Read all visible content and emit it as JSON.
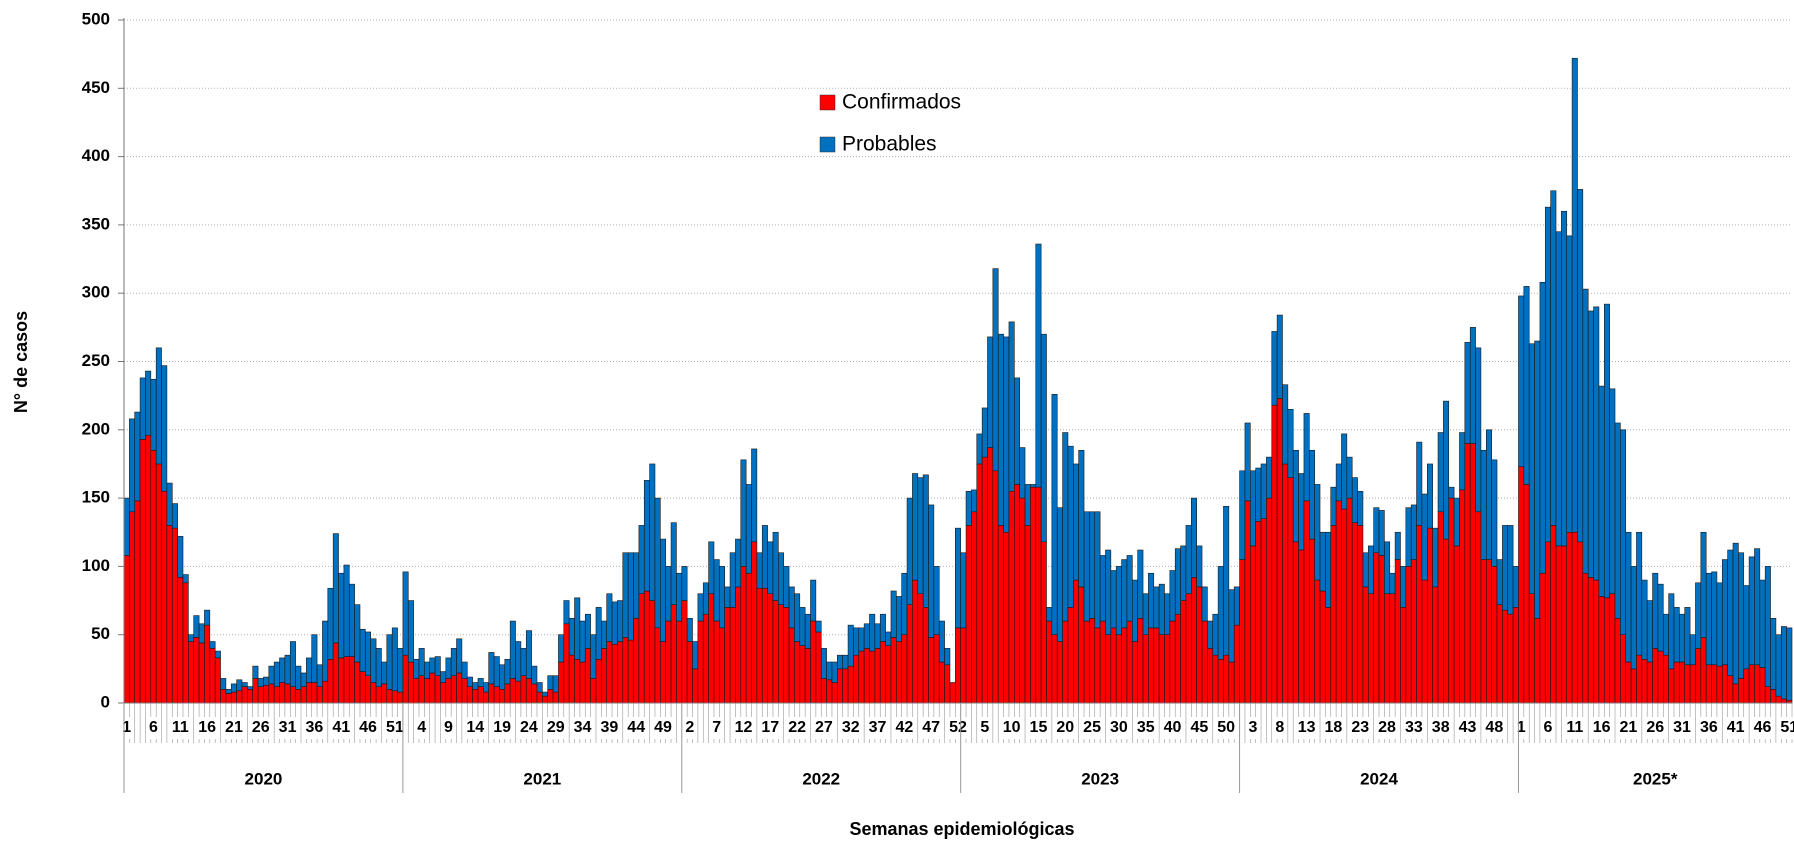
{
  "chart_data": {
    "type": "stacked-bar",
    "x_title": "Semanas epidemiológicas",
    "y_title": "N° de casos",
    "ylim": [
      0,
      500
    ],
    "yticks": [
      0,
      50,
      100,
      150,
      200,
      250,
      300,
      350,
      400,
      450,
      500
    ],
    "grid": true,
    "legend": "top",
    "x_groups": [
      {
        "label": "2020",
        "size": 52
      },
      {
        "label": "2021",
        "size": 52
      },
      {
        "label": "2022",
        "size": 52
      },
      {
        "label": "2023",
        "size": 52
      },
      {
        "label": "2024",
        "size": 52
      },
      {
        "label": "2025*",
        "size": 51
      }
    ],
    "categories": [
      1,
      null,
      null,
      null,
      null,
      6,
      null,
      null,
      null,
      null,
      11,
      null,
      null,
      null,
      null,
      16,
      null,
      null,
      null,
      null,
      21,
      null,
      null,
      null,
      null,
      26,
      null,
      null,
      null,
      null,
      31,
      null,
      null,
      null,
      null,
      36,
      null,
      null,
      null,
      null,
      41,
      null,
      null,
      null,
      null,
      46,
      null,
      null,
      null,
      null,
      51,
      null,
      null,
      null,
      null,
      4,
      null,
      null,
      null,
      null,
      9,
      null,
      null,
      null,
      null,
      14,
      null,
      null,
      null,
      null,
      19,
      null,
      null,
      null,
      null,
      24,
      null,
      null,
      null,
      null,
      29,
      null,
      null,
      null,
      null,
      34,
      null,
      null,
      null,
      null,
      39,
      null,
      null,
      null,
      null,
      44,
      null,
      null,
      null,
      null,
      49,
      null,
      null,
      null,
      null,
      2,
      null,
      null,
      null,
      null,
      7,
      null,
      null,
      null,
      null,
      12,
      null,
      null,
      null,
      null,
      17,
      null,
      null,
      null,
      null,
      22,
      null,
      null,
      null,
      null,
      27,
      null,
      null,
      null,
      null,
      32,
      null,
      null,
      null,
      null,
      37,
      null,
      null,
      null,
      null,
      42,
      null,
      null,
      null,
      null,
      47,
      null,
      null,
      null,
      null,
      52,
      null,
      null,
      null,
      null,
      5,
      null,
      null,
      null,
      null,
      10,
      null,
      null,
      null,
      null,
      15,
      null,
      null,
      null,
      null,
      20,
      null,
      null,
      null,
      null,
      25,
      null,
      null,
      null,
      null,
      30,
      null,
      null,
      null,
      null,
      35,
      null,
      null,
      null,
      null,
      40,
      null,
      null,
      null,
      null,
      45,
      null,
      null,
      null,
      null,
      50,
      null,
      null,
      null,
      null,
      3,
      null,
      null,
      null,
      null,
      8,
      null,
      null,
      null,
      null,
      13,
      null,
      null,
      null,
      null,
      18,
      null,
      null,
      null,
      null,
      23,
      null,
      null,
      null,
      null,
      28,
      null,
      null,
      null,
      null,
      33,
      null,
      null,
      null,
      null,
      38,
      null,
      null,
      null,
      null,
      43,
      null,
      null,
      null,
      null,
      48,
      null,
      null,
      null,
      null,
      1,
      null,
      null,
      null,
      null,
      6,
      null,
      null,
      null,
      null,
      11,
      null,
      null,
      null,
      null,
      16,
      null,
      null,
      null,
      null,
      21,
      null,
      null,
      null,
      null,
      26,
      null,
      null,
      null,
      null,
      31,
      null,
      null,
      null,
      null,
      36,
      null,
      null,
      null,
      null,
      41,
      null,
      null,
      null,
      null,
      46,
      null,
      null,
      null,
      null,
      51
    ],
    "series": [
      {
        "name": "Confirmados",
        "color": "#ff0000",
        "values": [
          108,
          140,
          148,
          193,
          196,
          185,
          175,
          155,
          130,
          128,
          92,
          88,
          45,
          48,
          44,
          57,
          40,
          33,
          10,
          7,
          8,
          9,
          12,
          10,
          18,
          12,
          13,
          14,
          12,
          15,
          14,
          12,
          10,
          12,
          15,
          15,
          12,
          16,
          32,
          44,
          33,
          34,
          34,
          30,
          23,
          20,
          15,
          12,
          14,
          10,
          9,
          8,
          35,
          30,
          18,
          20,
          18,
          22,
          20,
          15,
          18,
          20,
          22,
          18,
          12,
          10,
          12,
          8,
          14,
          12,
          10,
          14,
          18,
          16,
          20,
          18,
          14,
          8,
          5,
          10,
          8,
          30,
          58,
          35,
          32,
          30,
          40,
          18,
          32,
          40,
          45,
          43,
          45,
          48,
          46,
          62,
          80,
          82,
          75,
          55,
          45,
          60,
          72,
          60,
          75,
          45,
          25,
          60,
          65,
          80,
          60,
          55,
          70,
          70,
          85,
          100,
          95,
          118,
          84,
          84,
          80,
          75,
          72,
          70,
          55,
          45,
          42,
          40,
          60,
          52,
          18,
          17,
          15,
          25,
          25,
          27,
          35,
          38,
          40,
          38,
          40,
          45,
          42,
          48,
          45,
          50,
          72,
          90,
          80,
          70,
          48,
          50,
          30,
          28,
          15,
          55,
          55,
          130,
          140,
          175,
          180,
          187,
          170,
          130,
          125,
          155,
          160,
          150,
          130,
          158,
          158,
          118,
          60,
          50,
          45,
          60,
          70,
          90,
          85,
          60,
          62,
          55,
          60,
          50,
          55,
          50,
          55,
          60,
          45,
          62,
          50,
          55,
          55,
          50,
          50,
          60,
          65,
          75,
          80,
          92,
          85,
          60,
          40,
          35,
          32,
          35,
          30,
          57,
          105,
          148,
          115,
          133,
          135,
          150,
          218,
          223,
          175,
          165,
          118,
          112,
          148,
          120,
          90,
          82,
          70,
          130,
          148,
          142,
          150,
          132,
          130,
          85,
          80,
          110,
          108,
          80,
          80,
          105,
          70,
          100,
          105,
          130,
          90,
          128,
          85,
          140,
          120,
          150,
          115,
          156,
          190,
          190,
          140,
          105,
          105,
          100,
          72,
          68,
          65,
          70,
          173,
          160,
          80,
          62,
          95,
          118,
          130,
          115,
          115,
          125,
          125,
          118,
          95,
          92,
          90,
          78,
          77,
          80,
          62,
          50,
          30,
          25,
          35,
          32,
          30,
          40,
          38,
          35,
          25,
          30,
          30,
          28,
          28,
          40,
          48,
          28,
          28,
          27,
          28,
          20,
          14,
          18,
          25,
          28,
          28,
          26,
          12,
          10,
          5,
          3,
          2
        ]
      },
      {
        "name": "Probables",
        "color": "#0070c0",
        "values": [
          42,
          68,
          65,
          45,
          47,
          52,
          85,
          92,
          31,
          18,
          30,
          6,
          5,
          16,
          14,
          11,
          5,
          5,
          8,
          3,
          6,
          8,
          3,
          2,
          9,
          6,
          6,
          13,
          18,
          18,
          21,
          33,
          17,
          10,
          18,
          35,
          16,
          44,
          52,
          80,
          62,
          67,
          53,
          42,
          31,
          32,
          32,
          28,
          16,
          40,
          46,
          32,
          61,
          45,
          14,
          20,
          12,
          11,
          14,
          8,
          15,
          20,
          25,
          12,
          7,
          5,
          6,
          7,
          23,
          22,
          18,
          18,
          42,
          29,
          20,
          35,
          13,
          7,
          3,
          10,
          12,
          20,
          17,
          27,
          45,
          30,
          25,
          32,
          38,
          20,
          35,
          31,
          30,
          62,
          64,
          48,
          50,
          81,
          100,
          95,
          75,
          40,
          60,
          35,
          25,
          17,
          20,
          20,
          23,
          38,
          45,
          45,
          15,
          40,
          35,
          78,
          65,
          68,
          26,
          46,
          38,
          50,
          38,
          30,
          30,
          35,
          28,
          25,
          30,
          8,
          22,
          13,
          15,
          10,
          10,
          30,
          20,
          17,
          18,
          27,
          18,
          20,
          10,
          34,
          33,
          45,
          78,
          78,
          85,
          97,
          97,
          50,
          30,
          12,
          0,
          73,
          55,
          25,
          16,
          22,
          36,
          81,
          148,
          140,
          143,
          124,
          78,
          37,
          30,
          2,
          178,
          152,
          10,
          176,
          98,
          138,
          118,
          85,
          100,
          80,
          78,
          85,
          48,
          62,
          42,
          50,
          50,
          48,
          45,
          50,
          30,
          40,
          30,
          37,
          30,
          37,
          48,
          40,
          50,
          58,
          30,
          25,
          20,
          30,
          68,
          109,
          53,
          28,
          65,
          57,
          55,
          39,
          40,
          30,
          54,
          61,
          58,
          50,
          67,
          56,
          64,
          65,
          70,
          43,
          55,
          28,
          27,
          55,
          30,
          33,
          25,
          25,
          35,
          33,
          33,
          38,
          15,
          20,
          30,
          43,
          40,
          61,
          63,
          47,
          43,
          58,
          101,
          8,
          35,
          42,
          74,
          85,
          120,
          80,
          95,
          78,
          33,
          62,
          65,
          30,
          125,
          145,
          183,
          203,
          213,
          245,
          245,
          230,
          245,
          217,
          347,
          258,
          208,
          195,
          200,
          154,
          215,
          150,
          143,
          150,
          95,
          75,
          90,
          58,
          45,
          55,
          49,
          30,
          55,
          40,
          35,
          42,
          22,
          48,
          77,
          67,
          68,
          61,
          77,
          92,
          103,
          92,
          61,
          79,
          85,
          64,
          88,
          52,
          45,
          53,
          53
        ]
      }
    ]
  }
}
